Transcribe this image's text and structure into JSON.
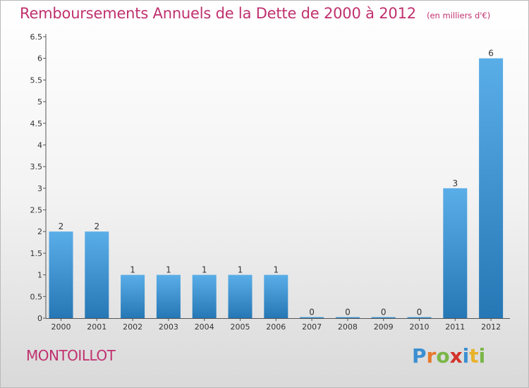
{
  "chart_data": {
    "type": "bar",
    "title": "Remboursements Annuels de la Dette de 2000 à 2012",
    "unit": "(en milliers d'€)",
    "categories": [
      "2000",
      "2001",
      "2002",
      "2003",
      "2004",
      "2005",
      "2006",
      "2007",
      "2008",
      "2009",
      "2010",
      "2011",
      "2012"
    ],
    "values": [
      2,
      2,
      1,
      1,
      1,
      1,
      1,
      0,
      0,
      0,
      0,
      3,
      6
    ],
    "data_labels": [
      "2",
      "2",
      "1",
      "1",
      "1",
      "1",
      "1",
      "0",
      "0",
      "0",
      "0",
      "3",
      "6"
    ],
    "ylim": [
      0,
      6.5
    ],
    "yticks": [
      "0",
      "0.5",
      "1",
      "1.5",
      "2",
      "2.5",
      "3",
      "3.5",
      "4",
      "4.5",
      "5",
      "5.5",
      "6",
      "6.5"
    ],
    "grid": false,
    "bar_color_top": "#5aaee8",
    "bar_color_bottom": "#2677b5"
  },
  "footer": {
    "town": "MONTOILLOT",
    "logo_letters": [
      {
        "ch": "P",
        "color": "#3b8fd1"
      },
      {
        "ch": "r",
        "color": "#e8792a"
      },
      {
        "ch": "o",
        "color": "#7ab648"
      },
      {
        "ch": "x",
        "color": "#d2332b"
      },
      {
        "ch": "i",
        "color": "#3b8fd1"
      },
      {
        "ch": "t",
        "color": "#e8b22a"
      },
      {
        "ch": "i",
        "color": "#7ab648"
      }
    ]
  }
}
